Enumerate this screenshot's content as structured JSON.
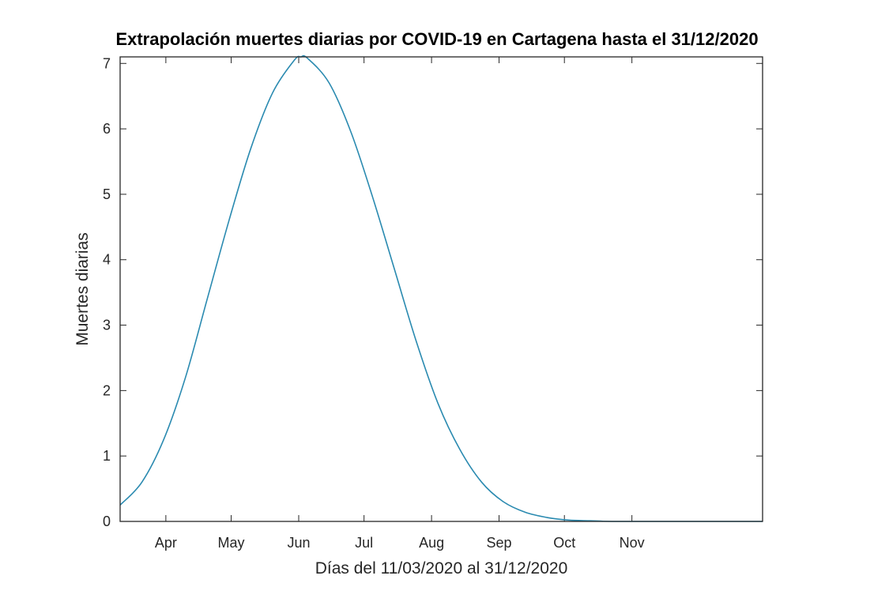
{
  "chart_data": {
    "type": "line",
    "title": "Extrapolación muertes diarias por COVID-19 en Cartagena hasta el 31/12/2020",
    "xlabel": "Días del 11/03/2020 al 31/12/2020",
    "ylabel": "Muertes diarias",
    "xlim": [
      "2020-03-11",
      "2020-12-31"
    ],
    "ylim": [
      0,
      7.1
    ],
    "grid": false,
    "x_ticks": [
      {
        "date": "2020-04-01",
        "label": "Apr"
      },
      {
        "date": "2020-05-01",
        "label": "May"
      },
      {
        "date": "2020-06-01",
        "label": "Jun"
      },
      {
        "date": "2020-07-01",
        "label": "Jul"
      },
      {
        "date": "2020-08-01",
        "label": "Aug"
      },
      {
        "date": "2020-09-01",
        "label": "Sep"
      },
      {
        "date": "2020-10-01",
        "label": "Oct"
      },
      {
        "date": "2020-11-01",
        "label": "Nov"
      }
    ],
    "y_ticks": [
      0,
      1,
      2,
      3,
      4,
      5,
      6,
      7
    ],
    "series": [
      {
        "color": "#2a8ab0",
        "points": [
          {
            "x": "2020-03-11",
            "y": 0.25
          },
          {
            "x": "2020-03-21",
            "y": 0.6
          },
          {
            "x": "2020-03-31",
            "y": 1.25
          },
          {
            "x": "2020-04-10",
            "y": 2.2
          },
          {
            "x": "2020-04-20",
            "y": 3.4
          },
          {
            "x": "2020-04-30",
            "y": 4.6
          },
          {
            "x": "2020-05-10",
            "y": 5.7
          },
          {
            "x": "2020-05-20",
            "y": 6.55
          },
          {
            "x": "2020-05-30",
            "y": 7.05
          },
          {
            "x": "2020-06-02",
            "y": 7.1
          },
          {
            "x": "2020-06-05",
            "y": 7.08
          },
          {
            "x": "2020-06-15",
            "y": 6.7
          },
          {
            "x": "2020-06-25",
            "y": 5.95
          },
          {
            "x": "2020-07-05",
            "y": 4.95
          },
          {
            "x": "2020-07-15",
            "y": 3.85
          },
          {
            "x": "2020-07-25",
            "y": 2.75
          },
          {
            "x": "2020-08-04",
            "y": 1.8
          },
          {
            "x": "2020-08-14",
            "y": 1.1
          },
          {
            "x": "2020-08-24",
            "y": 0.6
          },
          {
            "x": "2020-09-03",
            "y": 0.3
          },
          {
            "x": "2020-09-13",
            "y": 0.14
          },
          {
            "x": "2020-09-23",
            "y": 0.06
          },
          {
            "x": "2020-10-03",
            "y": 0.02
          },
          {
            "x": "2020-10-13",
            "y": 0.01
          },
          {
            "x": "2020-10-23",
            "y": 0.0
          },
          {
            "x": "2020-11-15",
            "y": 0.0
          },
          {
            "x": "2020-12-31",
            "y": 0.0
          }
        ]
      }
    ]
  }
}
